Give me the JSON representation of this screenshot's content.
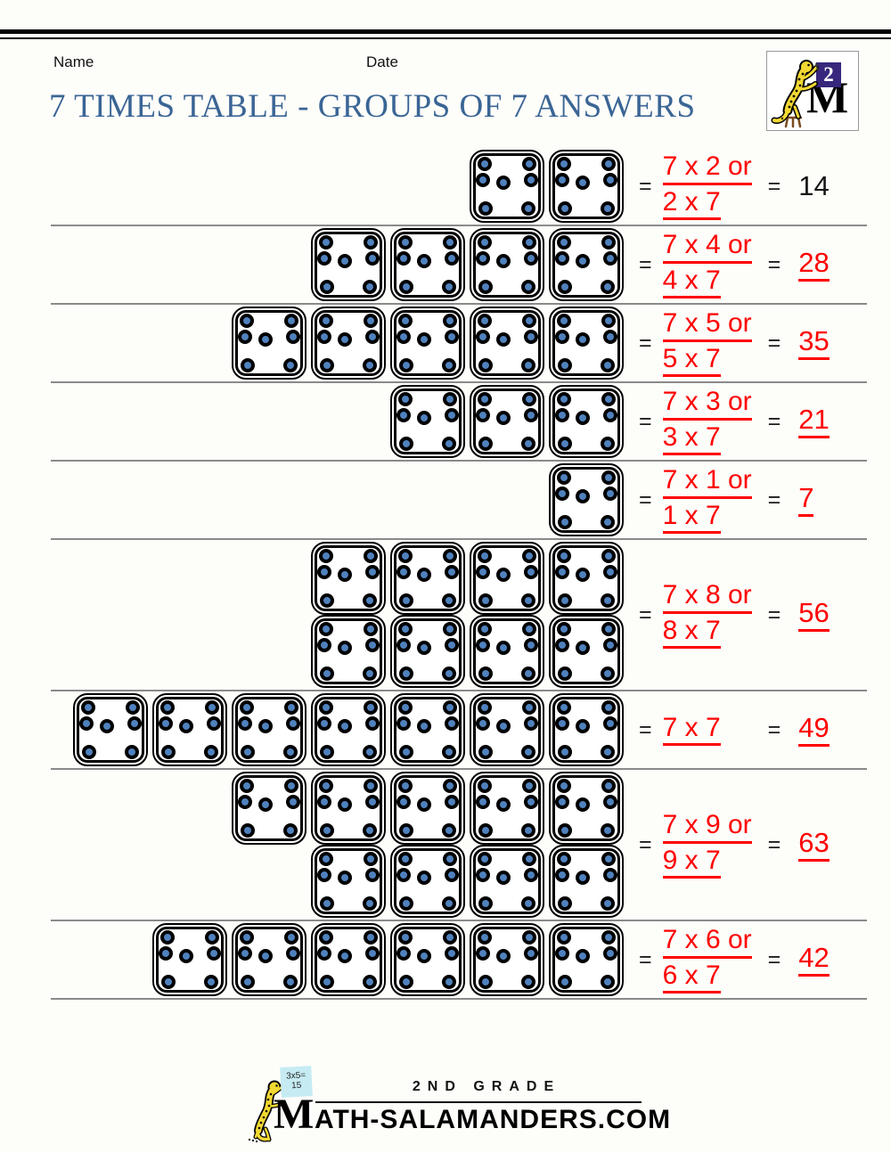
{
  "header": {
    "name_label": "Name",
    "date_label": "Date",
    "title": "7 TIMES TABLE - GROUPS OF 7 ANSWERS"
  },
  "logo": {
    "grade_badge": "2",
    "m_letter": "M"
  },
  "equals_sign": "=",
  "dots_per_tile": 7,
  "rows": [
    {
      "tile_rows": [
        2
      ],
      "expression_lines": [
        "7 x 2 or",
        "2 x 7"
      ],
      "answer": "14",
      "answer_highlighted": false
    },
    {
      "tile_rows": [
        4
      ],
      "expression_lines": [
        "7 x 4 or",
        "4 x 7"
      ],
      "answer": "28",
      "answer_highlighted": true
    },
    {
      "tile_rows": [
        5
      ],
      "expression_lines": [
        "7 x 5 or",
        "5 x 7"
      ],
      "answer": "35",
      "answer_highlighted": true
    },
    {
      "tile_rows": [
        3
      ],
      "expression_lines": [
        "7 x 3 or",
        "3 x 7"
      ],
      "answer": "21",
      "answer_highlighted": true
    },
    {
      "tile_rows": [
        1
      ],
      "expression_lines": [
        "7 x 1 or",
        "1 x 7"
      ],
      "answer": "7",
      "answer_highlighted": true
    },
    {
      "tile_rows": [
        4,
        4
      ],
      "expression_lines": [
        "7 x 8 or",
        "8 x 7"
      ],
      "answer": "56",
      "answer_highlighted": true
    },
    {
      "tile_rows": [
        7
      ],
      "expression_lines": [
        "7 x 7"
      ],
      "answer": "49",
      "answer_highlighted": true
    },
    {
      "tile_rows": [
        5,
        4
      ],
      "expression_lines": [
        "7 x 9 or",
        "9 x 7"
      ],
      "answer": "63",
      "answer_highlighted": true
    },
    {
      "tile_rows": [
        6
      ],
      "expression_lines": [
        "7 x 6 or",
        "6 x 7"
      ],
      "answer": "42",
      "answer_highlighted": true
    }
  ],
  "footer": {
    "grade_text": "2ND GRADE",
    "m_letter": "M",
    "site_text": "ATH-SALAMANDERS.COM",
    "note_text_line1": "3x5=",
    "note_text_line2": "15"
  },
  "colors": {
    "dot_blue": "#4f81bd",
    "accent_red": "#fe0000",
    "title_blue": "#3a6595"
  }
}
